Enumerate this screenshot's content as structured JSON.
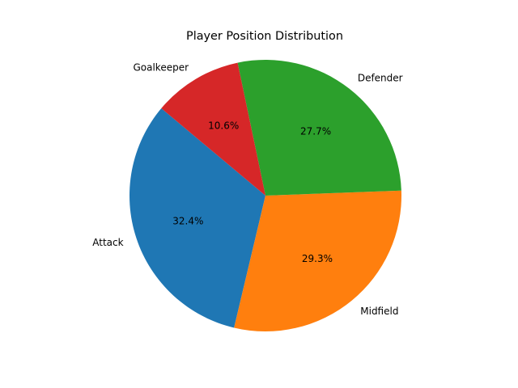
{
  "chart_data": {
    "type": "pie",
    "title": "Player Position Distribution",
    "categories": [
      "Attack",
      "Midfield",
      "Defender",
      "Goalkeeper"
    ],
    "values": [
      32.4,
      29.3,
      27.7,
      10.6
    ],
    "percent_labels": [
      "32.4%",
      "29.3%",
      "27.7%",
      "10.6%"
    ],
    "colors": [
      "#1f77b4",
      "#ff7f0e",
      "#2ca02c",
      "#d62728"
    ],
    "start_angle_deg": 140,
    "direction": "counterclockwise",
    "legend": "none"
  }
}
